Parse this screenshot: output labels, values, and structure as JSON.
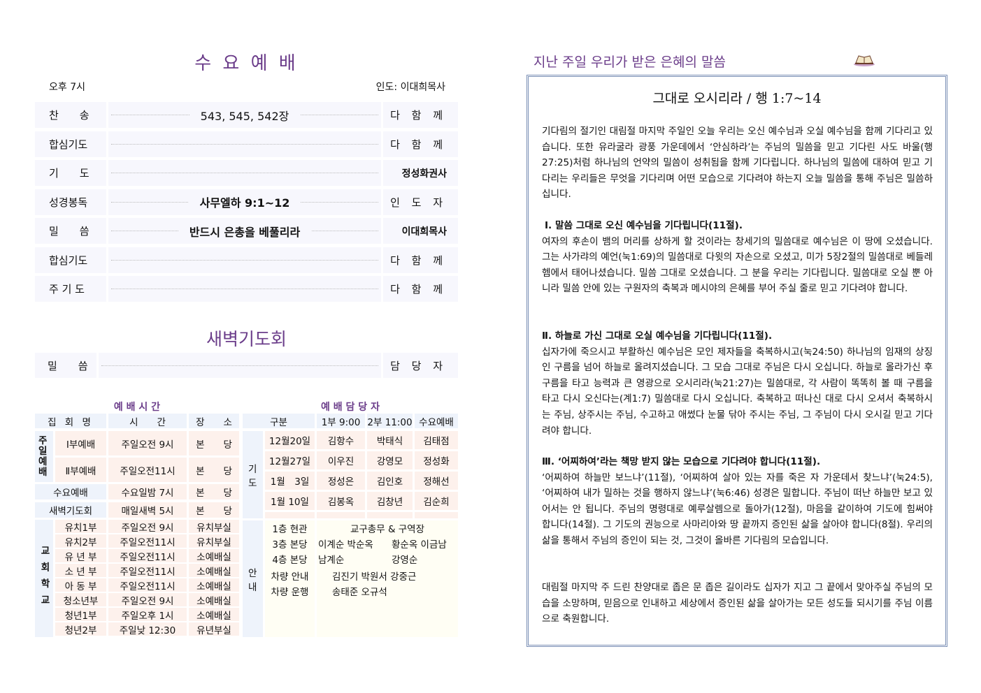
{
  "wednesday": {
    "title": "수 요 예 배",
    "time": "오후 7시",
    "leader": "인도: 이대희목사",
    "rows": [
      {
        "label": "찬　　송",
        "content": "543, 545, 542장",
        "who": "다 함 께"
      },
      {
        "label": "합심기도",
        "content": "",
        "who": "다 함 께"
      },
      {
        "label": "기　　도",
        "content": "",
        "who": "정성화권사"
      },
      {
        "label": "성경봉독",
        "content": "사무엘하 9:1~12",
        "who": "인 도 자"
      },
      {
        "label": "밀　　씀",
        "content": "반드시 은총을 베풀리라",
        "who": "이대희목사"
      },
      {
        "label": "합심기도",
        "content": "",
        "who": "다 함 께"
      },
      {
        "label": "주 기 도",
        "content": "",
        "who": "다 함 께"
      }
    ]
  },
  "dawn": {
    "title": "새벽기도회",
    "label": "밀　　씀",
    "who": "담 당 자"
  },
  "schedule": {
    "title": "예 배 시 간",
    "headers": [
      "집 회 명",
      "시　　간",
      "장　　소"
    ],
    "sunday_group": "주일예배",
    "sunday": [
      {
        "name": "Ⅰ부예배",
        "time": "주일오전 9시",
        "place": "본　　당"
      },
      {
        "name": "Ⅱ부예배",
        "time": "주일오전11시",
        "place": "본　　당"
      }
    ],
    "wednesday": {
      "name": "수요예배",
      "time": "수요일밤 7시",
      "place": "본　　당"
    },
    "dawn": {
      "name": "새벽기도회",
      "time": "매일새벽 5시",
      "place": "본　　당"
    },
    "school_group": "교회학교",
    "school": [
      {
        "name": "유치1부",
        "time": "주일오전 9시",
        "place": "유치부실"
      },
      {
        "name": "유치2부",
        "time": "주일오전11시",
        "place": "유치부실"
      },
      {
        "name": "유 년 부",
        "time": "주일오전11시",
        "place": "소예배실"
      },
      {
        "name": "소 년 부",
        "time": "주일오전11시",
        "place": "소예배실"
      },
      {
        "name": "아 동 부",
        "time": "주일오전11시",
        "place": "소예배실"
      },
      {
        "name": "청소년부",
        "time": "주일오전 9시",
        "place": "소예배실"
      },
      {
        "name": "청년1부",
        "time": "주일오후 1시",
        "place": "소예배실"
      },
      {
        "name": "청년2부",
        "time": "주일낮 12:30",
        "place": "유년부실"
      }
    ]
  },
  "duty": {
    "title": "예 배 담 당 자",
    "headers": [
      "구분",
      "1부 9:00",
      "2부 11:00",
      "수요예배"
    ],
    "prayer_group": "기도",
    "prayer": [
      {
        "date": "12월20일",
        "first": "김항수",
        "second": "박태식",
        "wed": "김태점"
      },
      {
        "date": "12월27일",
        "first": "이우진",
        "second": "강영모",
        "wed": "정성화"
      },
      {
        "date": "1월　3일",
        "first": "정성은",
        "second": "김인호",
        "wed": "정해선"
      },
      {
        "date": "1월 10일",
        "first": "김봉옥",
        "second": "김창년",
        "wed": "김순희"
      }
    ],
    "guide_group": "안내",
    "guide": [
      {
        "place": "1층 현관",
        "a": "교구총무 & 구역장",
        "b": ""
      },
      {
        "place": "3층 본당",
        "a": "이계순 박순옥",
        "b": "황순옥 이금남"
      },
      {
        "place": "4층 본당",
        "a": "남계순",
        "b": "강영순"
      },
      {
        "place": "차량 안내",
        "a": "김진기 박원서 강중근",
        "b": ""
      },
      {
        "place": "차량 운행",
        "a": "송태준 오규석",
        "b": ""
      }
    ]
  },
  "sermon": {
    "heading": "지난 주일 우리가 받은 은혜의 말씀",
    "icon": "open-bible-icon",
    "title": "그대로 오시리라 / 행 1:7~14",
    "intro": "기다림의 절기인 대림절 마지막 주일인 오늘 우리는 오신 예수님과 오실 예수님을 함께 기다리고 있습니다. 또한 유라굴라 광풍 가운데에서 ‘안심하라’는 주님의 밀씀을 믿고 기다린 사도 바울(행27:25)처럼 하나님의 언약의 밀씀이 성취됨을 함께 기다립니다. 하나님의 밀씀에 대하여 믿고 기다리는 우리들은 무엇을 기다리며 어떤 모습으로 기다려야 하는지 오늘 밀씀을 통해 주님은 밀씀하십니다.",
    "sections": [
      {
        "heading": "Ⅰ. 말씀 그대로 오신 예수님을 기다립니다(11절).",
        "body": "여자의 후손이 뱀의 머리를 상하게 할 것이라는 창세기의 밀씀대로 예수님은 이 땅에 오셨습니다. 그는 사가랴의 예언(눅1:69)의 밀씀대로 다윗의 자손으로 오셨고, 미가 5장2절의 밀씀대로 베들레헴에서 태어나셨습니다. 밀씀 그대로 오셨습니다. 그 분을 우리는 기다립니다. 밀씀대로 오실 뿐 아니라 밀씀 안에 있는 구원자의 축복과 메시야의 은혜를 부어 주실 줄로 믿고 기다려야 합니다."
      },
      {
        "heading": "Ⅱ. 하늘로 가신 그대로 오실 예수님을 기다립니다(11절).",
        "body": "십자가에 죽으시고 부활하신 예수님은 모인 제자들을 축복하시고(눅24:50) 하나님의 임재의 상징인 구름을 넘어 하늘로 올려지셨습니다. 그 모습 그대로 주님은 다시 오십니다. 하늘로 올라가신 후 구름을 타고 능력과 큰 영광으로 오시리라(눅21:27)는 밀씀대로, 각 사람이 똑똑히 볼 때 구름을 타고 다시 오신다는(계1:7) 밀씀대로 다시 오십니다. 축복하고 떠나신 대로 다시 오셔서 축복하시는 주님, 상주시는 주님, 수고하고 애썼다 눈물 닦아 주시는 주님, 그 주님이 다시 오시길 믿고 기다려야 합니다."
      },
      {
        "heading": "Ⅲ. ‘어찌하여’라는 책망 받지 않는 모습으로 기다려야 합니다(11절).",
        "body": "‘어찌하여 하늘만 보느냐’(11절), ‘어찌하여 살아 있는 자를 죽은 자 가운데서 찾느냐’(눅24:5), ‘어찌하여 내가 밀하는 것을 행하지 않느냐’(눅6:46) 성경은 밀합니다. 주님이 떠난 하늘만 보고 있어서는 안 됩니다. 주님의 명령대로 예루살렘으로 돌아가(12절), 마음을 같이하여 기도에 힘써야 합니다(14절). 그 기도의 권능으로 사마리아와 땅 끝까지 증인된 삶을 살아야 합니다(8절). 우리의 삶을 통해서 주님의 증인이 되는 것, 그것이 올바른 기다림의 모습입니다."
      }
    ],
    "closing": "대림절 마지막 주 드린 찬양대로 좁은 문 좁은 길이라도 십자가 지고 그 끝에서 맞아주실 주님의 모습을 소망하며, 믿음으로 인내하고 세상에서 증인된 삶을 살아가는 모든 성도들 되시기를 주님 이름으로 축원합니다."
  },
  "colors": {
    "title_purple": "#6b3d8a",
    "box_border": "#7a8fb5",
    "header_blue": "#eef3fb",
    "cell_pink": "#fdf1ec",
    "guide_cream": "#fffef4"
  }
}
